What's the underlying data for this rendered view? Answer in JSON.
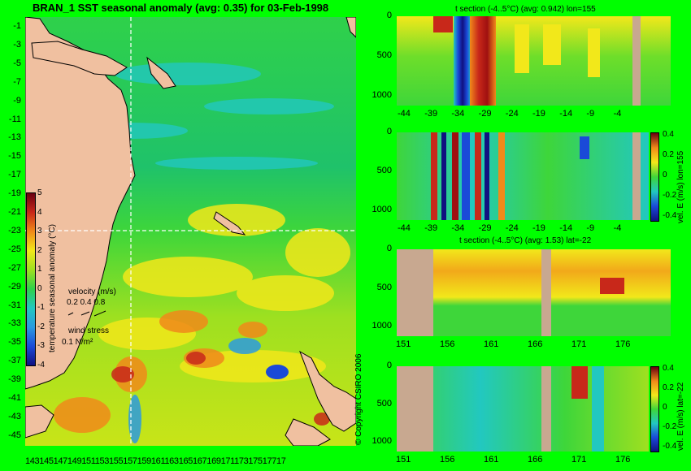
{
  "map": {
    "title": "BRAN_1 SST seasonal anomaly (avg: 0.35) for 03-Feb-1998",
    "lat_labels": [
      "-1",
      "-3",
      "-5",
      "-7",
      "-9",
      "-11",
      "-13",
      "-15",
      "-17",
      "-19",
      "-21",
      "-23",
      "-25",
      "-27",
      "-29",
      "-31",
      "-33",
      "-35",
      "-37",
      "-39",
      "-41",
      "-43",
      "-45"
    ],
    "lon_labels_text": "14314514714915115315515715916116316516716917117317517717",
    "colorbar": {
      "label": "temperature seasonal anomaly (°C)",
      "ticks": [
        "5",
        "4",
        "3",
        "2",
        "1",
        "0",
        "-1",
        "-2",
        "-3",
        "-4"
      ]
    },
    "velocity_legend": {
      "title": "velocity (m/s)",
      "values": "0.2 0.4 0.8"
    },
    "wind_legend": {
      "title": "wind stress",
      "value": "0.1 N/m²"
    },
    "copyright": "© Copyright CSIRO 2006"
  },
  "panels": [
    {
      "title": "t section (-4..5°C) (avg: 0.942) lon=155",
      "y_ticks": [
        "0",
        "500",
        "1000"
      ],
      "x_ticks": [
        "-44",
        "-39",
        "-34",
        "-29",
        "-24",
        "-19",
        "-14",
        "-9",
        "-4"
      ]
    },
    {
      "title": "",
      "y_ticks": [
        "0",
        "500",
        "1000"
      ],
      "x_ticks": [
        "-44",
        "-39",
        "-34",
        "-29",
        "-24",
        "-19",
        "-14",
        "-9",
        "-4"
      ],
      "side_label": "vel. E (m/s) lon=155",
      "cbar_ticks": [
        "0.4",
        "0.2",
        "0",
        "-0.2",
        "-0.4"
      ]
    },
    {
      "title": "t section (-4..5°C) (avg: 1.53) lat=-22",
      "y_ticks": [
        "0",
        "500",
        "1000"
      ],
      "x_ticks": [
        "151",
        "156",
        "161",
        "166",
        "171",
        "176"
      ]
    },
    {
      "title": "",
      "y_ticks": [
        "0",
        "500",
        "1000"
      ],
      "x_ticks": [
        "151",
        "156",
        "161",
        "166",
        "171",
        "176"
      ],
      "side_label": "vel. E (m/s) lat=-22",
      "cbar_ticks": [
        "0.4",
        "0.2",
        "0",
        "-0.2",
        "-0.4"
      ]
    }
  ]
}
